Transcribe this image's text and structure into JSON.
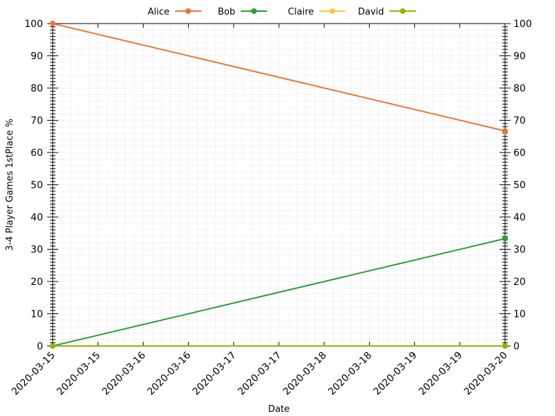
{
  "chart_data": {
    "type": "line",
    "title": "",
    "xlabel": "Date",
    "ylabel": "3-4 Player Games 1stPlace %",
    "ylim": [
      0,
      100
    ],
    "xlim": [
      "2020-03-15",
      "2020-03-20"
    ],
    "yticks": [
      0,
      10,
      20,
      30,
      40,
      50,
      60,
      70,
      80,
      90,
      100
    ],
    "xtick_labels": [
      "2020-03-15",
      "2020-03-15",
      "2020-03-16",
      "2020-03-16",
      "2020-03-17",
      "2020-03-17",
      "2020-03-18",
      "2020-03-18",
      "2020-03-19",
      "2020-03-19",
      "2020-03-20"
    ],
    "grid": true,
    "y_axis_mirrored_right": true,
    "legend_position": "top-center",
    "series": [
      {
        "name": "Alice",
        "color": "#e87533",
        "points": [
          {
            "x": "2020-03-15",
            "y": 100
          },
          {
            "x": "2020-03-20",
            "y": 66.7
          }
        ]
      },
      {
        "name": "Bob",
        "color": "#2a9c38",
        "points": [
          {
            "x": "2020-03-15",
            "y": 0
          },
          {
            "x": "2020-03-20",
            "y": 33.3
          }
        ]
      },
      {
        "name": "Claire",
        "color": "#fbc93b",
        "points": [
          {
            "x": "2020-03-15",
            "y": 0
          },
          {
            "x": "2020-03-20",
            "y": 0
          }
        ]
      },
      {
        "name": "David",
        "color": "#99b000",
        "points": [
          {
            "x": "2020-03-15",
            "y": 0
          },
          {
            "x": "2020-03-20",
            "y": 0
          }
        ]
      }
    ]
  }
}
